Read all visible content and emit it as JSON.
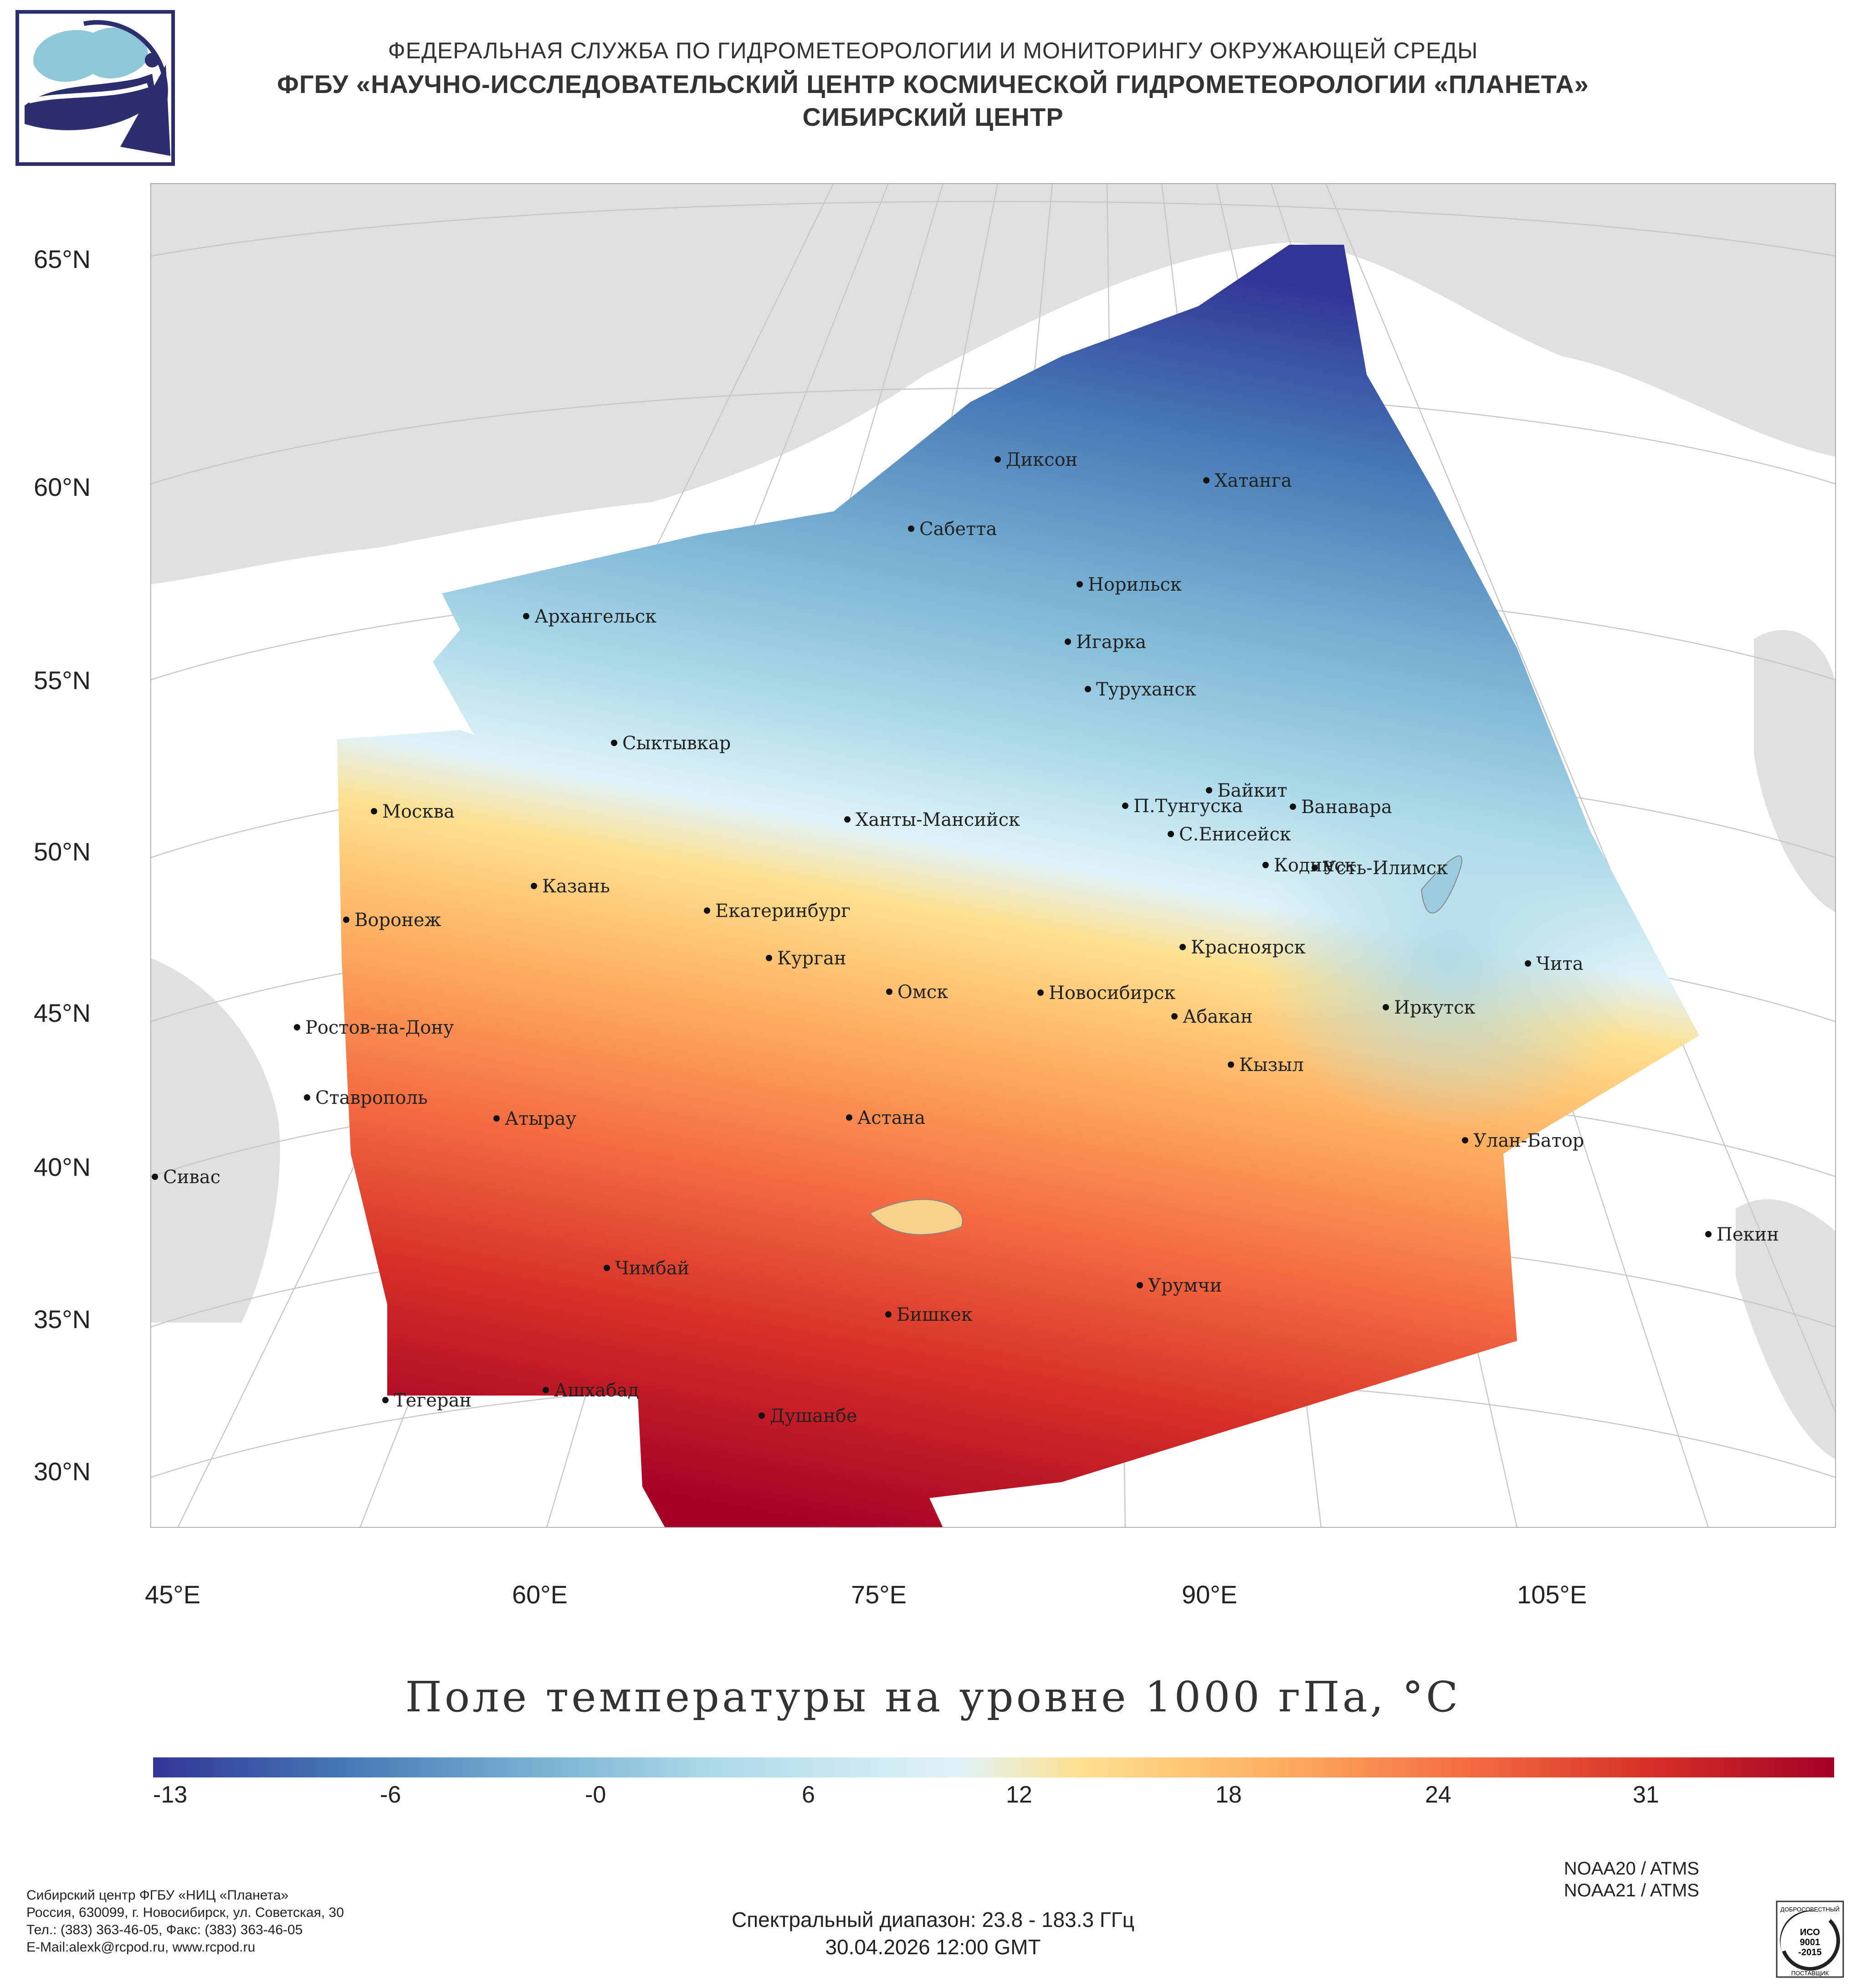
{
  "header": {
    "line1": "ФЕДЕРАЛЬНАЯ СЛУЖБА ПО ГИДРОМЕТЕОРОЛОГИИ И МОНИТОРИНГУ ОКРУЖАЮЩЕЙ СРЕДЫ",
    "line2": "ФГБУ «НАУЧНО-ИССЛЕДОВАТЕЛЬСКИЙ ЦЕНТР КОСМИЧЕСКОЙ ГИДРОМЕТЕОРОЛОГИИ «ПЛАНЕТА»",
    "line3": "СИБИРСКИЙ ЦЕНТР"
  },
  "map": {
    "lat_labels": [
      "65°N",
      "60°N",
      "55°N",
      "50°N",
      "45°N",
      "40°N",
      "35°N",
      "30°N"
    ],
    "lon_labels": [
      "45°E",
      "60°E",
      "75°E",
      "90°E",
      "105°E"
    ],
    "cities": [
      {
        "name": "Диксон"
      },
      {
        "name": "Хатанга"
      },
      {
        "name": "Сабетта"
      },
      {
        "name": "Норильск"
      },
      {
        "name": "Архангельск"
      },
      {
        "name": "Игарка"
      },
      {
        "name": "Туруханск"
      },
      {
        "name": "Сыктывкар"
      },
      {
        "name": "Байкит"
      },
      {
        "name": "Москва"
      },
      {
        "name": "Ханты-Мансийск"
      },
      {
        "name": "П.Тунгуска"
      },
      {
        "name": "Ванавара"
      },
      {
        "name": "С.Енисейск"
      },
      {
        "name": "Казань"
      },
      {
        "name": "Кодинск"
      },
      {
        "name": "Усть-Илимск"
      },
      {
        "name": "Воронеж"
      },
      {
        "name": "Екатеринбург"
      },
      {
        "name": "Красноярск"
      },
      {
        "name": "Курган"
      },
      {
        "name": "Чита"
      },
      {
        "name": "Омск"
      },
      {
        "name": "Новосибирск"
      },
      {
        "name": "Иркутск"
      },
      {
        "name": "Ростов-на-Дону"
      },
      {
        "name": "Абакан"
      },
      {
        "name": "Кызыл"
      },
      {
        "name": "Ставрополь"
      },
      {
        "name": "Астана"
      },
      {
        "name": "Улан-Батор"
      },
      {
        "name": "Атырау"
      },
      {
        "name": "Сивас"
      },
      {
        "name": "Пекин"
      },
      {
        "name": "Чимбай"
      },
      {
        "name": "Урумчи"
      },
      {
        "name": "Бишкек"
      },
      {
        "name": "Ашхабад"
      },
      {
        "name": "Тегеран"
      },
      {
        "name": "Душанбе"
      }
    ]
  },
  "title": "Поле температуры на уровне 1000 гПа, °C",
  "colorbar": {
    "ticks": [
      "-13",
      "-6",
      "-0",
      "6",
      "12",
      "18",
      "24",
      "31"
    ],
    "colors": [
      "#313695",
      "#4575b4",
      "#74add1",
      "#abd9e9",
      "#e0f3f8",
      "#fee090",
      "#fdae61",
      "#f46d43",
      "#d73027",
      "#a50026"
    ]
  },
  "footer": {
    "org": "Сибирский центр ФГБУ «НИЦ «Планета»",
    "address": "Россия, 630099, г. Новосибирск, ул. Советская, 30",
    "phones": "Тел.: (383) 363-46-05, Факс: (383) 363-46-05",
    "email": "E-Mail:alexk@rcpod.ru, www.rcpod.ru",
    "satellites": [
      "NOAA20 / ATMS",
      "NOAA21 / ATMS"
    ],
    "spectral": "Спектральный диапазон: 23.8 - 183.3 ГГц",
    "datetime": "30.04.2026 12:00 GMT"
  },
  "iso_badge": {
    "top": "ДОБРОСОВЕСТНЫЙ",
    "l1": "ИСО",
    "l2": "9001",
    "l3": "-2015",
    "bottom": "ПОСТАВЩИК"
  }
}
